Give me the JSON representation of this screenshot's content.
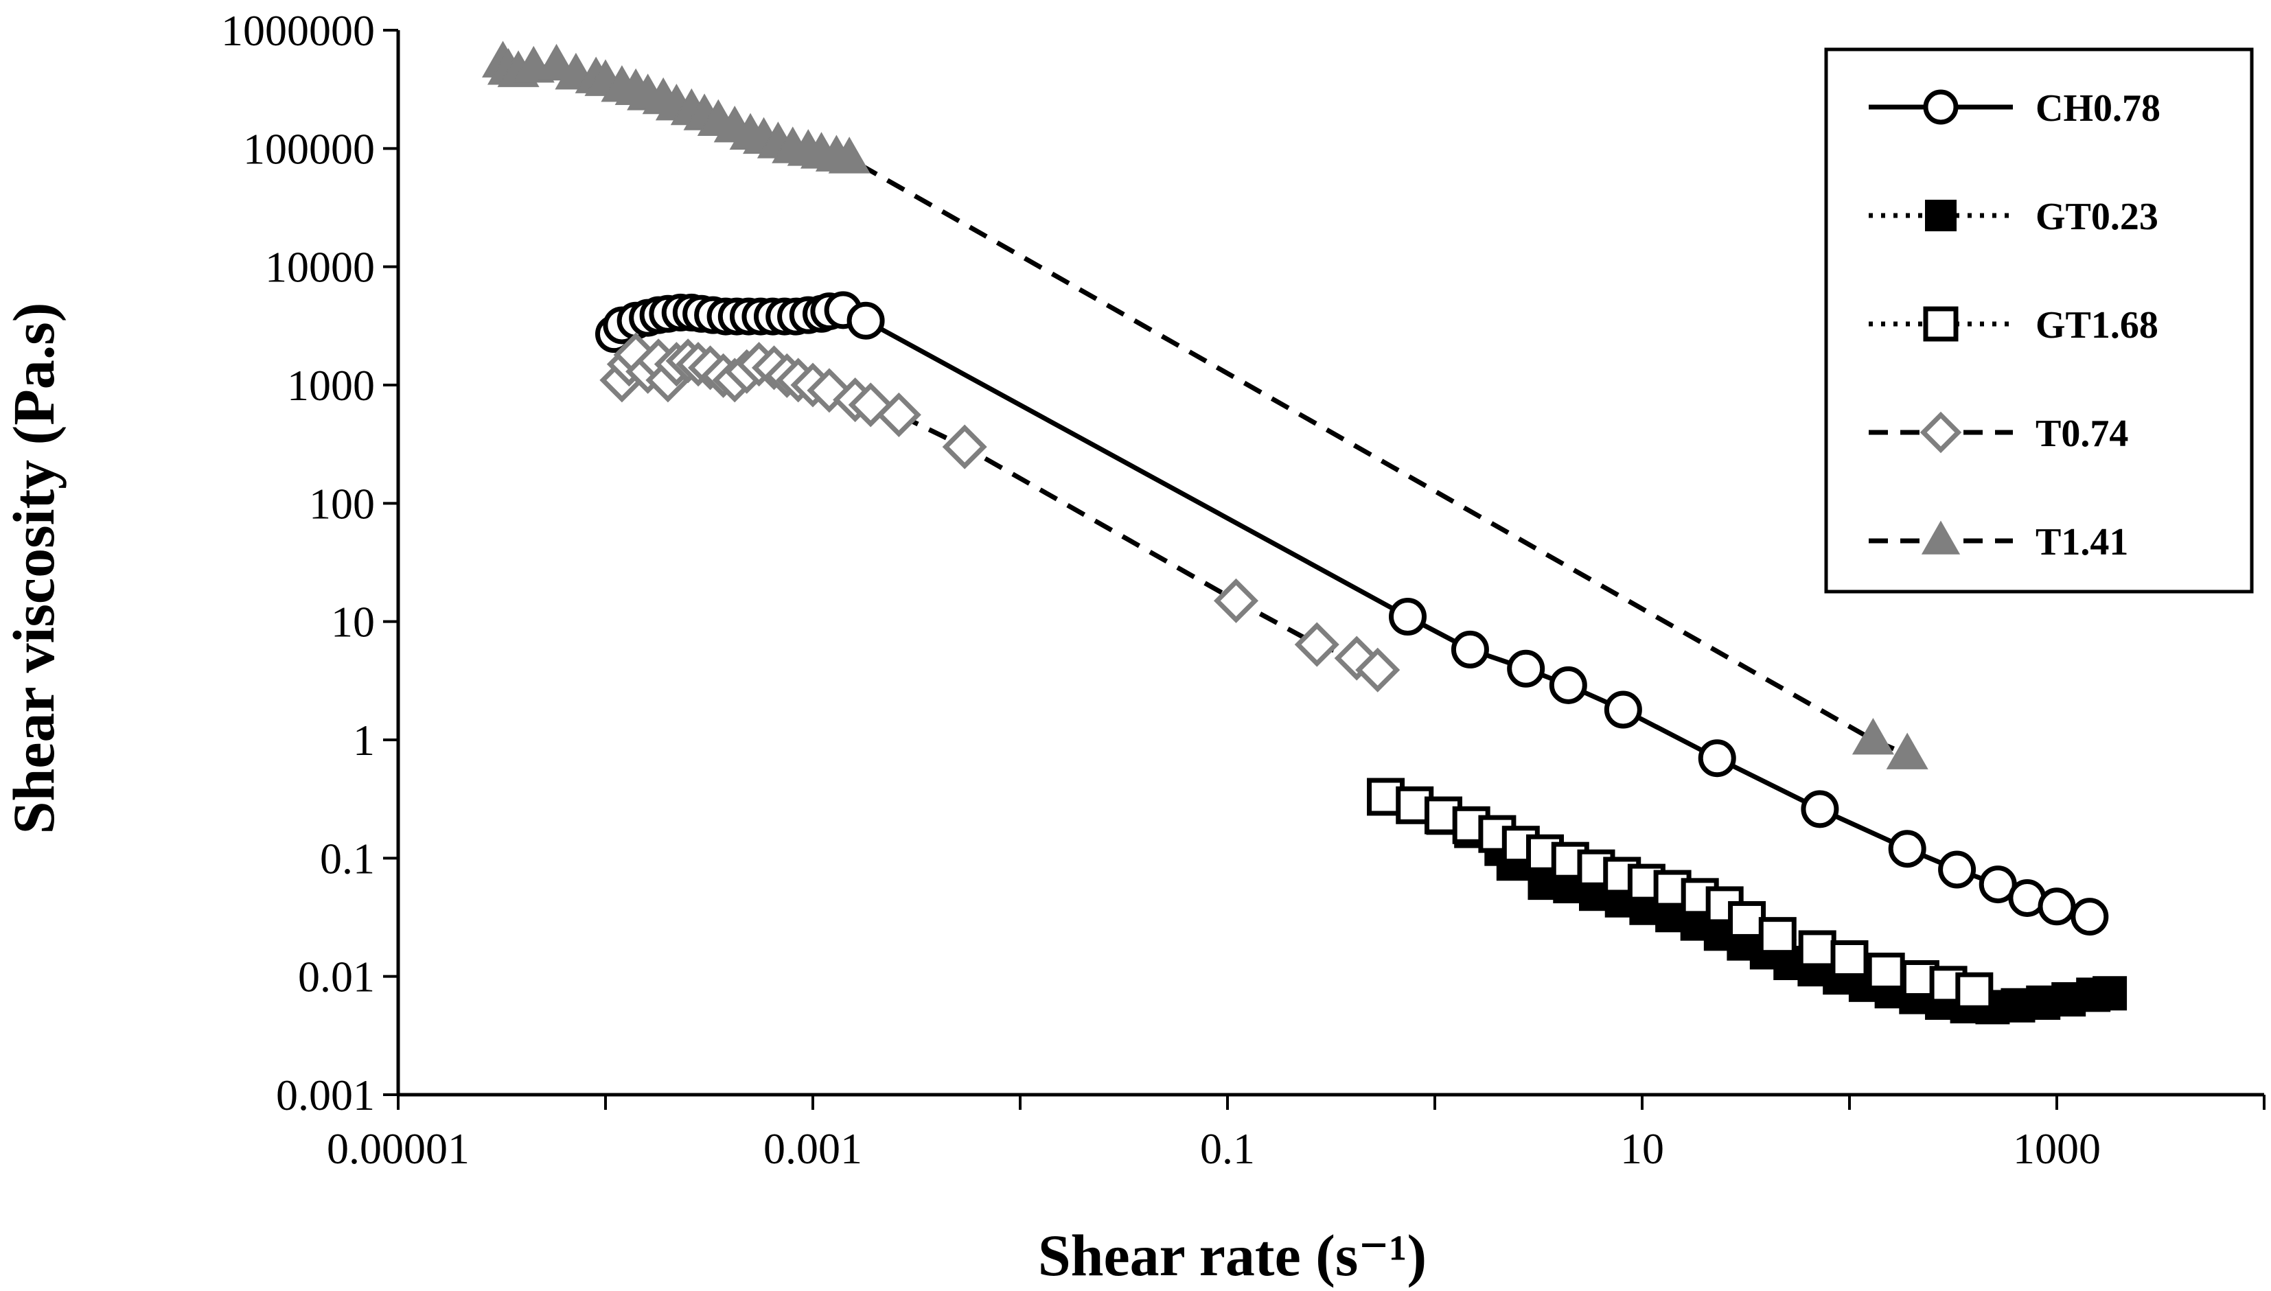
{
  "chart_data": {
    "type": "scatter",
    "xscale": "log",
    "yscale": "log",
    "xlabel": "Shear rate (s⁻¹)",
    "ylabel": "Shear viscosity (Pa.s)",
    "xlim": [
      1e-05,
      10000
    ],
    "ylim": [
      0.001,
      1000000
    ],
    "x_ticks": [
      {
        "value": 1e-05,
        "label": "0.00001"
      },
      {
        "value": 0.001,
        "label": "0.001"
      },
      {
        "value": 0.1,
        "label": "0.1"
      },
      {
        "value": 10,
        "label": "10"
      },
      {
        "value": 1000,
        "label": "1000"
      }
    ],
    "y_ticks": [
      {
        "value": 0.001,
        "label": "0.001"
      },
      {
        "value": 0.01,
        "label": "0.01"
      },
      {
        "value": 0.1,
        "label": "0.1"
      },
      {
        "value": 1,
        "label": "1"
      },
      {
        "value": 10,
        "label": "10"
      },
      {
        "value": 100,
        "label": "100"
      },
      {
        "value": 1000,
        "label": "1000"
      },
      {
        "value": 10000,
        "label": "10000"
      },
      {
        "value": 100000,
        "label": "100000"
      },
      {
        "value": 1000000,
        "label": "1000000"
      }
    ],
    "legend_position": "top-right",
    "series": [
      {
        "name": "CH0.78",
        "line": "solid",
        "marker": "circle-open",
        "color": "#000000",
        "points": [
          [
            0.00011,
            2700
          ],
          [
            0.00012,
            3200
          ],
          [
            0.00014,
            3500
          ],
          [
            0.00016,
            3700
          ],
          [
            0.00018,
            3900
          ],
          [
            0.0002,
            4000
          ],
          [
            0.00023,
            4100
          ],
          [
            0.00026,
            4100
          ],
          [
            0.00029,
            4000
          ],
          [
            0.00033,
            3900
          ],
          [
            0.00038,
            3800
          ],
          [
            0.00043,
            3800
          ],
          [
            0.00049,
            3800
          ],
          [
            0.00056,
            3800
          ],
          [
            0.00064,
            3800
          ],
          [
            0.00073,
            3800
          ],
          [
            0.00083,
            3800
          ],
          [
            0.00095,
            3900
          ],
          [
            0.0011,
            4000
          ],
          [
            0.0012,
            4200
          ],
          [
            0.0014,
            4300
          ],
          [
            0.0018,
            3500
          ],
          [
            0.74,
            11
          ],
          [
            1.48,
            5.8
          ],
          [
            2.75,
            4.0
          ],
          [
            4.4,
            2.9
          ],
          [
            8.1,
            1.8
          ],
          [
            23,
            0.7
          ],
          [
            72,
            0.26
          ],
          [
            190,
            0.12
          ],
          [
            330,
            0.08
          ],
          [
            520,
            0.06
          ],
          [
            720,
            0.046
          ],
          [
            1000,
            0.039
          ],
          [
            1440,
            0.032
          ]
        ]
      },
      {
        "name": "GT0.23",
        "line": "dotted",
        "marker": "square-filled",
        "color": "#000000",
        "points": [
          [
            0.58,
            0.33
          ],
          [
            0.8,
            0.28
          ],
          [
            1.1,
            0.22
          ],
          [
            1.5,
            0.17
          ],
          [
            2.1,
            0.12
          ],
          [
            2.4,
            0.09
          ],
          [
            3.4,
            0.062
          ],
          [
            4.5,
            0.058
          ],
          [
            6,
            0.05
          ],
          [
            8,
            0.044
          ],
          [
            10.5,
            0.038
          ],
          [
            14,
            0.033
          ],
          [
            18.5,
            0.028
          ],
          [
            24,
            0.023
          ],
          [
            31,
            0.019
          ],
          [
            40,
            0.016
          ],
          [
            52,
            0.013
          ],
          [
            68,
            0.0115
          ],
          [
            90,
            0.0098
          ],
          [
            120,
            0.0085
          ],
          [
            160,
            0.0075
          ],
          [
            210,
            0.0067
          ],
          [
            280,
            0.006
          ],
          [
            370,
            0.0056
          ],
          [
            490,
            0.0055
          ],
          [
            650,
            0.0057
          ],
          [
            860,
            0.006
          ],
          [
            1140,
            0.0064
          ],
          [
            1500,
            0.007
          ],
          [
            1800,
            0.0072
          ]
        ]
      },
      {
        "name": "GT1.68",
        "line": "dotted",
        "marker": "square-open",
        "color": "#000000",
        "points": [
          [
            0.58,
            0.33
          ],
          [
            0.8,
            0.28
          ],
          [
            1.1,
            0.23
          ],
          [
            1.5,
            0.19
          ],
          [
            2.0,
            0.16
          ],
          [
            2.6,
            0.13
          ],
          [
            3.4,
            0.11
          ],
          [
            4.5,
            0.095
          ],
          [
            6.0,
            0.082
          ],
          [
            8.0,
            0.071
          ],
          [
            10.5,
            0.062
          ],
          [
            14,
            0.055
          ],
          [
            19,
            0.047
          ],
          [
            25,
            0.04
          ],
          [
            32,
            0.03
          ],
          [
            45,
            0.022
          ],
          [
            70,
            0.017
          ],
          [
            100,
            0.014
          ],
          [
            150,
            0.011
          ],
          [
            220,
            0.0095
          ],
          [
            300,
            0.0085
          ],
          [
            400,
            0.0075
          ]
        ]
      },
      {
        "name": "T0.74",
        "line": "dashed",
        "marker": "diamond-open",
        "color": "#7f7f7f",
        "points": [
          [
            0.00012,
            1100
          ],
          [
            0.00013,
            1500
          ],
          [
            0.00014,
            1800
          ],
          [
            0.00016,
            1300
          ],
          [
            0.00018,
            1600
          ],
          [
            0.0002,
            1100
          ],
          [
            0.00022,
            1500
          ],
          [
            0.00025,
            1600
          ],
          [
            0.00028,
            1500
          ],
          [
            0.00032,
            1400
          ],
          [
            0.00037,
            1200
          ],
          [
            0.00042,
            1100
          ],
          [
            0.00048,
            1300
          ],
          [
            0.00055,
            1500
          ],
          [
            0.00065,
            1400
          ],
          [
            0.00075,
            1200
          ],
          [
            0.00085,
            1100
          ],
          [
            0.001,
            1000
          ],
          [
            0.0012,
            900
          ],
          [
            0.0016,
            750
          ],
          [
            0.0019,
            680
          ],
          [
            0.0026,
            560
          ],
          [
            0.0054,
            300
          ],
          [
            0.11,
            15
          ],
          [
            0.27,
            6.4
          ],
          [
            0.42,
            4.9
          ],
          [
            0.53,
            3.9
          ]
        ]
      },
      {
        "name": "T1.41",
        "line": "dashed",
        "marker": "triangle-filled",
        "color": "#7f7f7f",
        "points": [
          [
            3.2e-05,
            530000
          ],
          [
            3.4e-05,
            460000
          ],
          [
            3.8e-05,
            440000
          ],
          [
            4.5e-05,
            480000
          ],
          [
            5.8e-05,
            500000
          ],
          [
            7.2e-05,
            420000
          ],
          [
            9e-05,
            390000
          ],
          [
            0.0001,
            370000
          ],
          [
            0.00012,
            330000
          ],
          [
            0.00014,
            310000
          ],
          [
            0.00016,
            280000
          ],
          [
            0.00019,
            260000
          ],
          [
            0.00022,
            230000
          ],
          [
            0.00026,
            210000
          ],
          [
            0.0003,
            190000
          ],
          [
            0.00035,
            170000
          ],
          [
            0.00042,
            150000
          ],
          [
            0.0005,
            130000
          ],
          [
            0.00058,
            120000
          ],
          [
            0.00068,
            110000
          ],
          [
            0.0008,
            100000
          ],
          [
            0.00095,
            95000
          ],
          [
            0.0011,
            90000
          ],
          [
            0.0013,
            85000
          ],
          [
            0.0015,
            82000
          ],
          [
            130,
            1.0
          ],
          [
            190,
            0.75
          ]
        ]
      }
    ]
  }
}
